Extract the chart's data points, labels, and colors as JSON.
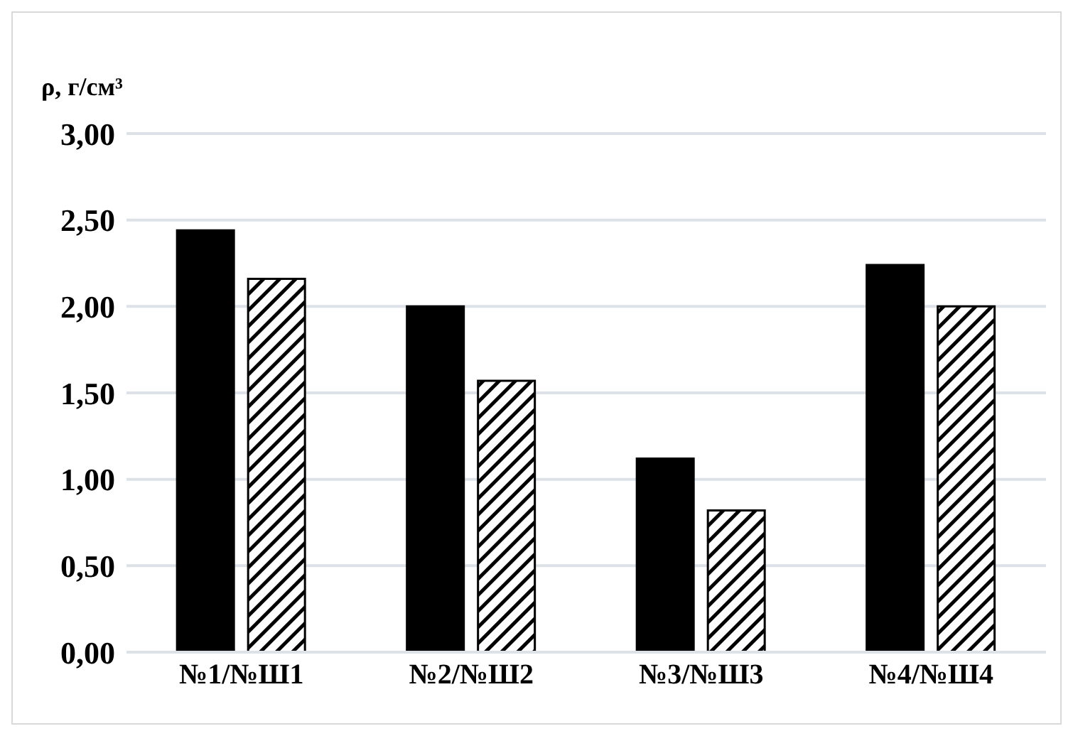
{
  "chart_data": {
    "type": "bar",
    "ylabel": "ρ, г/см³",
    "categories": [
      "№1/№Ш1",
      "№2/№Ш2",
      "№3/№Ш3",
      "№4/№Ш4"
    ],
    "series": [
      {
        "color": "#000000",
        "values": [
          2.44,
          2.0,
          1.12,
          2.24
        ]
      },
      {
        "color": "#000000",
        "values": [
          2.16,
          1.57,
          0.82,
          2.0
        ]
      }
    ],
    "ylim": [
      0,
      3
    ],
    "yticks": [
      {
        "value": 0,
        "label": "0,00"
      },
      {
        "value": 0.5,
        "label": "0,50"
      },
      {
        "value": 1,
        "label": "1,00"
      },
      {
        "value": 1.5,
        "label": "1,50"
      },
      {
        "value": 2,
        "label": "2,00"
      },
      {
        "value": 2.5,
        "label": "2,50"
      },
      {
        "value": 3,
        "label": "3,00"
      }
    ],
    "grid": "y"
  }
}
